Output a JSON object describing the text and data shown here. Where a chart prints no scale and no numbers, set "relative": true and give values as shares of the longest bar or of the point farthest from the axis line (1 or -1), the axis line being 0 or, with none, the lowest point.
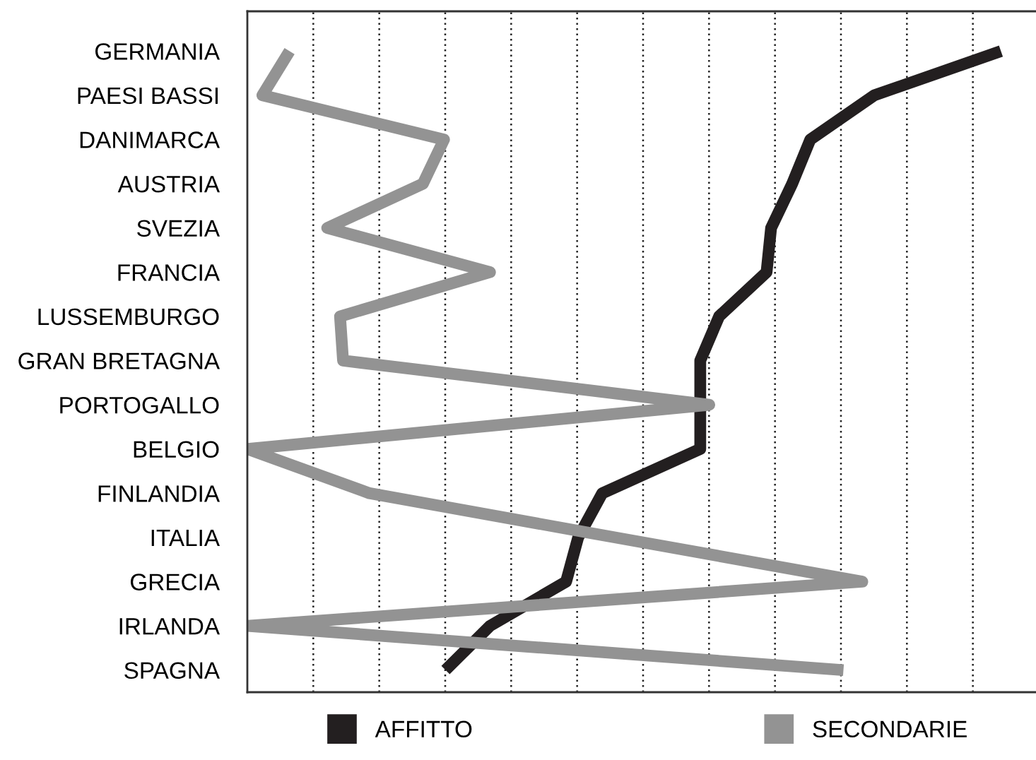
{
  "chart_data": {
    "type": "line",
    "orientation": "horizontal",
    "relative": true,
    "grid": "x",
    "legend": "bottom",
    "marker": "none",
    "line_style": "solid",
    "categories": [
      "GERMANIA",
      "PAESI BASSI",
      "DANIMARCA",
      "AUSTRIA",
      "SVEZIA",
      "FRANCIA",
      "LUSSEMBURGO",
      "GRAN BRETAGNA",
      "PORTOGALLO",
      "BELGIO",
      "FINLANDIA",
      "ITALIA",
      "GRECIA",
      "IRLANDA",
      "SPAGNA"
    ],
    "series": [
      {
        "name": "AFFITTO",
        "color": "#231f20",
        "values": [
          1.0,
          0.832,
          0.747,
          0.723,
          0.695,
          0.689,
          0.626,
          0.601,
          0.601,
          0.601,
          0.471,
          0.439,
          0.423,
          0.322,
          0.263
        ]
      },
      {
        "name": "SECONDARIE",
        "color": "#939393",
        "values": [
          0.056,
          0.02,
          0.261,
          0.233,
          0.106,
          0.322,
          0.123,
          0.127,
          0.613,
          0.0,
          0.162,
          0.488,
          0.816,
          0.0,
          0.791
        ]
      }
    ]
  }
}
